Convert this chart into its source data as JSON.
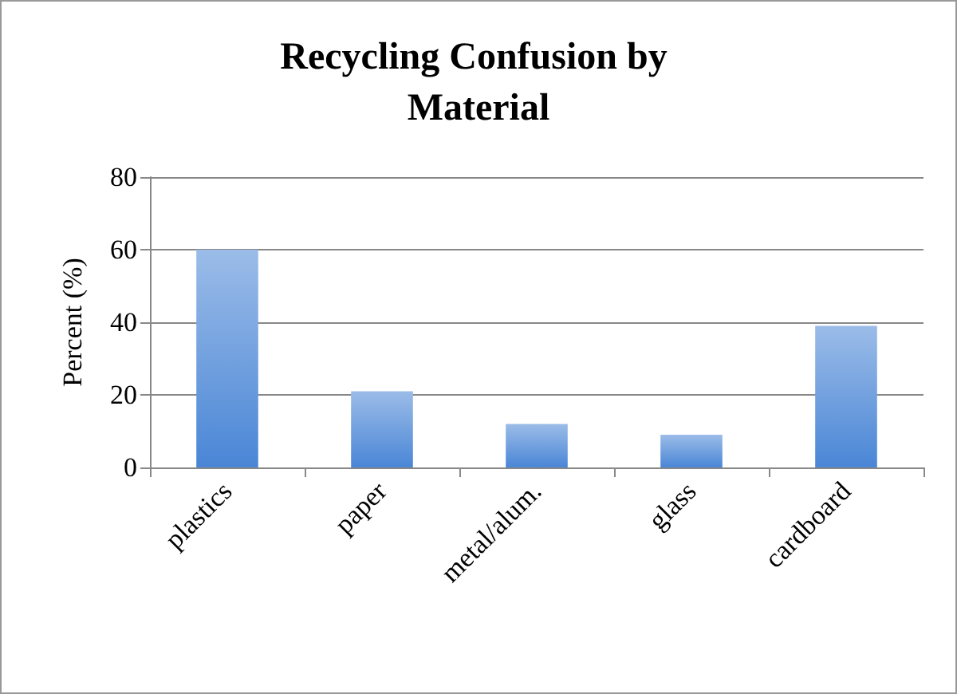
{
  "chart_data": {
    "type": "bar",
    "title": "Recycling Confusion by Material",
    "ylabel": "Percent (%)",
    "categories": [
      "plastics",
      "paper",
      "metal/alum.",
      "glass",
      "cardboard"
    ],
    "values": [
      60,
      21,
      12,
      9,
      39
    ],
    "color": "#4a86d6",
    "ylim": [
      0,
      80
    ],
    "yticks": [
      0,
      20,
      40,
      60,
      80
    ],
    "grid": "y"
  }
}
